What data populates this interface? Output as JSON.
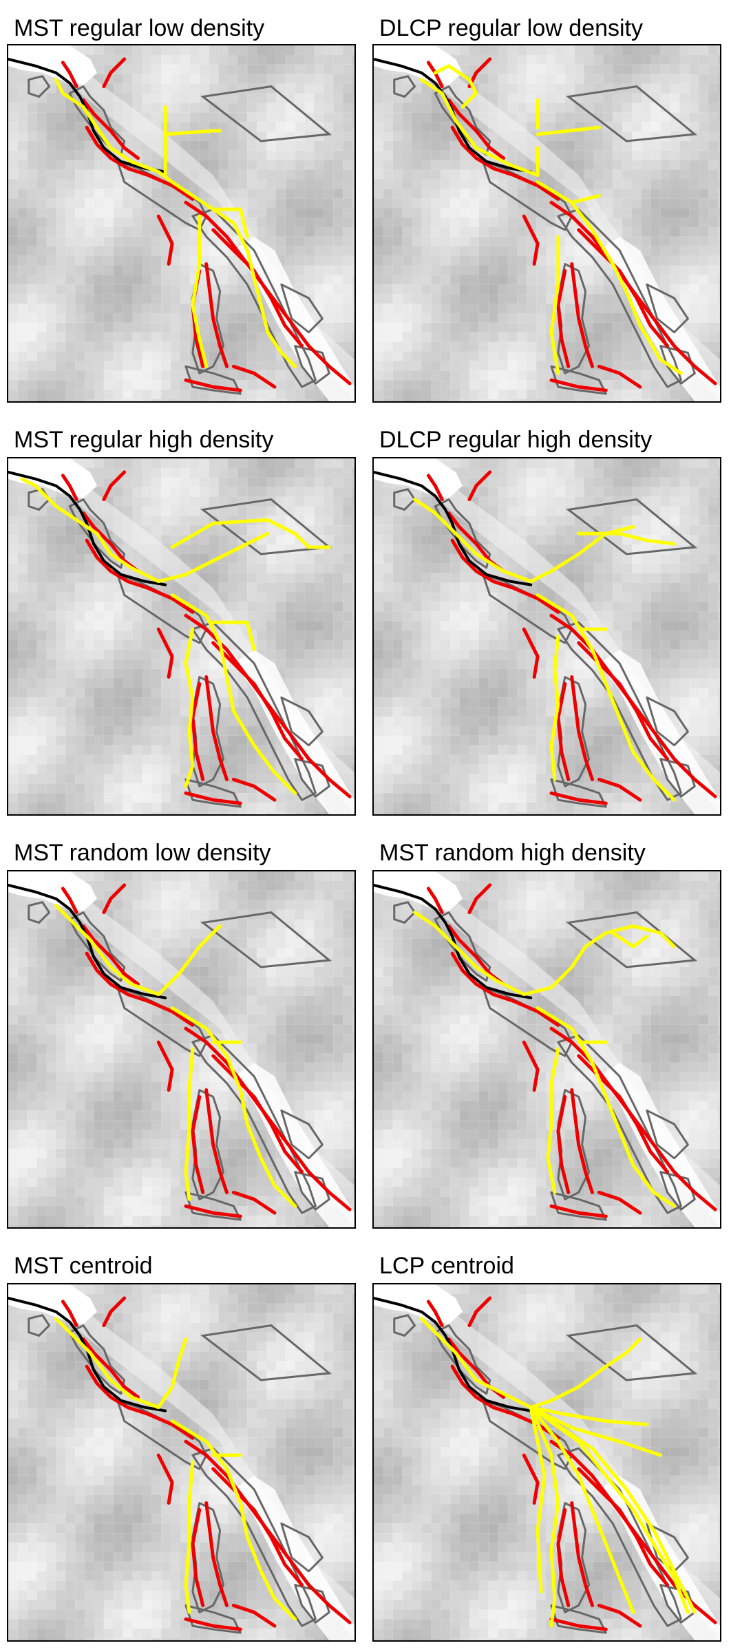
{
  "figure": {
    "panels": [
      {
        "id": "mst-regular-low",
        "title": "MST regular low density",
        "variant": "regular_low"
      },
      {
        "id": "dlcp-regular-low",
        "title": "DLCP regular low density",
        "variant": "regular_low_dlcp"
      },
      {
        "id": "mst-regular-high",
        "title": "MST regular high density",
        "variant": "regular_high"
      },
      {
        "id": "dlcp-regular-high",
        "title": "DLCP regular high density",
        "variant": "regular_high_dlcp"
      },
      {
        "id": "mst-random-low",
        "title": "MST random low density",
        "variant": "random_low"
      },
      {
        "id": "mst-random-high",
        "title": "MST random high density",
        "variant": "random_high"
      },
      {
        "id": "mst-centroid",
        "title": "MST centroid",
        "variant": "centroid"
      },
      {
        "id": "lcp-centroid",
        "title": "LCP centroid",
        "variant": "lcp"
      }
    ]
  },
  "colors": {
    "river": "#000000",
    "habitat_outline": "#666666",
    "red_layer": "#ee0000",
    "network": "#ffff00",
    "polygon": "#666666",
    "background_light": "#f2f2f2",
    "background_dark": "#b3b3b3"
  }
}
